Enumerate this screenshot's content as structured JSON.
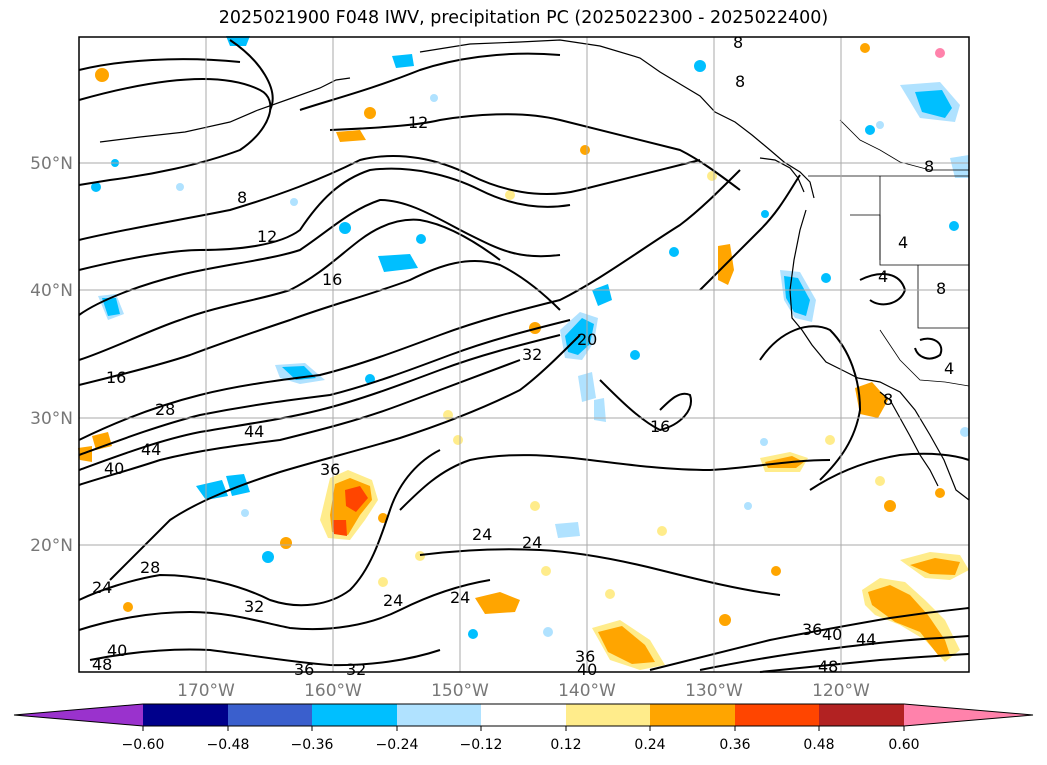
{
  "title": "2025021900 F048 IWV, precipitation PC (2025022300 - 2025022400)",
  "map": {
    "lat_labels": [
      "50°N",
      "40°N",
      "30°N",
      "20°N"
    ],
    "lon_labels": [
      "170°W",
      "160°W",
      "150°W",
      "140°W",
      "130°W",
      "120°W"
    ],
    "contour_labels": [
      "12",
      "8",
      "12",
      "16",
      "16",
      "28",
      "44",
      "44",
      "40",
      "36",
      "32",
      "20",
      "16",
      "24",
      "24",
      "28",
      "24",
      "32",
      "24",
      "24",
      "36",
      "40",
      "44",
      "48",
      "36",
      "40",
      "32",
      "36",
      "8",
      "8",
      "4",
      "4",
      "8",
      "4",
      "8",
      "8",
      "40",
      "48"
    ]
  },
  "colorbar": {
    "ticks": [
      "−0.60",
      "−0.48",
      "−0.36",
      "−0.24",
      "−0.12",
      "0.12",
      "0.24",
      "0.36",
      "0.48",
      "0.60"
    ],
    "colors": [
      "#9a32cd",
      "#00008b",
      "#3a5fcd",
      "#00bfff",
      "#b0e2ff",
      "#ffffff",
      "#ffec8b",
      "#ffa500",
      "#ff4500",
      "#b22222",
      "#ff82ab"
    ]
  }
}
